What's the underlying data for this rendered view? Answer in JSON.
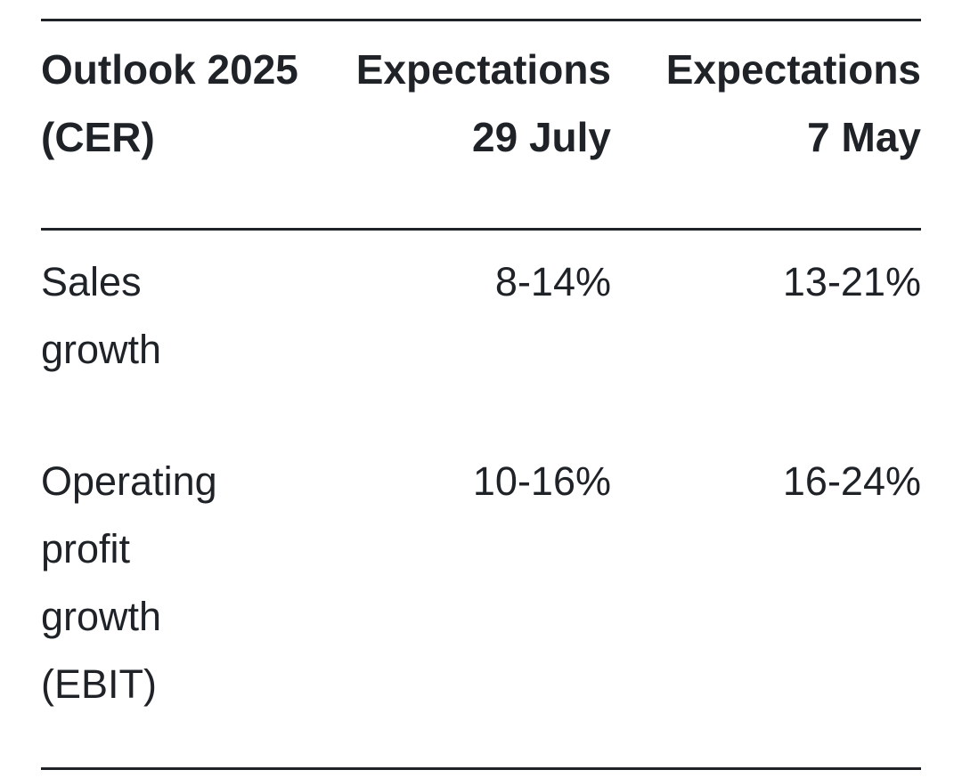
{
  "table": {
    "headers": {
      "col_label": "Outlook 2025 (CER)",
      "col_a": "Expectations 29 July",
      "col_b": "Expectations 7 May"
    },
    "rows": [
      {
        "label": "Sales growth",
        "a": "8-14%",
        "b": "13-21%"
      },
      {
        "label": "Operating profit growth (EBIT)",
        "a": "10-16%",
        "b": "16-24%"
      }
    ]
  }
}
